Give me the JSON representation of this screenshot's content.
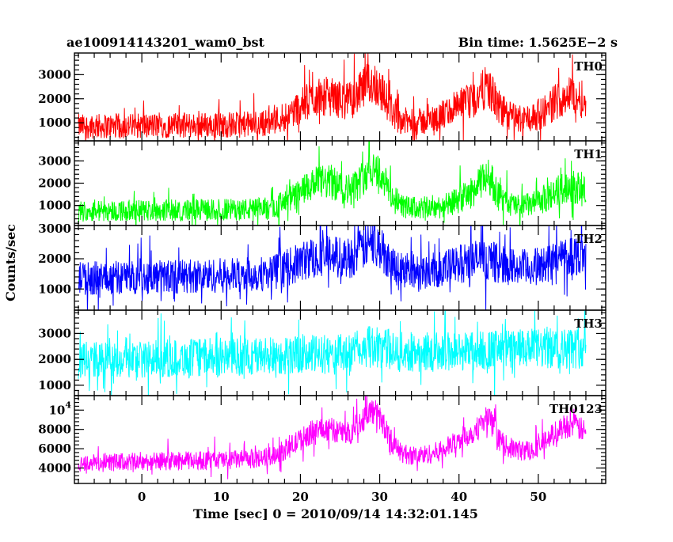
{
  "header": {
    "title": "ae100914143201_wam0_bst",
    "bin_time": "Bin time: 1.5625E−2 s"
  },
  "chart_data": {
    "type": "line",
    "xlabel": "Time [sec] 0 = 2010/09/14 14:32:01.145",
    "ylabel": "Counts/sec",
    "xlim": [
      -8.5,
      58.5
    ],
    "x_ticks": [
      0,
      10,
      20,
      30,
      40,
      50
    ],
    "x_range": [
      -8.0,
      56.0
    ],
    "panels": [
      {
        "name": "TH0",
        "color": "#ff0000",
        "ylim": [
          250,
          3900
        ],
        "y_ticks": [
          1000,
          2000,
          3000
        ],
        "baseline": 850,
        "noise": 520,
        "peaks": [
          {
            "t": 23.0,
            "amp": 1150,
            "w": 3.2
          },
          {
            "t": 29.2,
            "amp": 1500,
            "w": 1.6
          },
          {
            "t": 42.0,
            "amp": 850,
            "w": 2.8
          },
          {
            "t": 43.6,
            "amp": 700,
            "w": 0.8
          },
          {
            "t": 54.0,
            "amp": 1100,
            "w": 2.4
          }
        ]
      },
      {
        "name": "TH1",
        "color": "#00ff00",
        "ylim": [
          100,
          3900
        ],
        "y_ticks": [
          1000,
          2000,
          3000
        ],
        "baseline": 750,
        "noise": 480,
        "peaks": [
          {
            "t": 23.0,
            "amp": 1200,
            "w": 3.0
          },
          {
            "t": 29.3,
            "amp": 1700,
            "w": 1.5
          },
          {
            "t": 42.5,
            "amp": 700,
            "w": 2.2
          },
          {
            "t": 43.6,
            "amp": 800,
            "w": 0.8
          },
          {
            "t": 54.0,
            "amp": 900,
            "w": 2.4
          }
        ]
      },
      {
        "name": "TH2",
        "color": "#0000ff",
        "ylim": [
          300,
          3100
        ],
        "y_ticks": [
          1000,
          2000,
          3000
        ],
        "baseline": 1350,
        "noise": 560,
        "peaks": [
          {
            "t": 23.0,
            "amp": 600,
            "w": 3.2
          },
          {
            "t": 29.2,
            "amp": 850,
            "w": 1.6
          },
          {
            "t": 42.5,
            "amp": 350,
            "w": 2.5
          },
          {
            "t": 54.5,
            "amp": 450,
            "w": 2.5
          }
        ]
      },
      {
        "name": "TH3",
        "color": "#00ffff",
        "ylim": [
          600,
          3900
        ],
        "y_ticks": [
          1000,
          2000,
          3000
        ],
        "baseline": 1950,
        "noise": 720,
        "peaks": [
          {
            "t": 29.3,
            "amp": 250,
            "w": 1.6
          }
        ]
      },
      {
        "name": "TH0123",
        "color": "#ff00ff",
        "ylim": [
          2400,
          11500
        ],
        "y_ticks": [
          4000,
          6000,
          8000,
          10000
        ],
        "y_tick_labels": [
          "4000",
          "6000",
          "8000",
          "10^4"
        ],
        "baseline": 4500,
        "noise": 950,
        "peaks": [
          {
            "t": 23.0,
            "amp": 3000,
            "w": 3.2
          },
          {
            "t": 29.2,
            "amp": 4200,
            "w": 1.6
          },
          {
            "t": 42.2,
            "amp": 2200,
            "w": 2.6
          },
          {
            "t": 43.6,
            "amp": 1800,
            "w": 0.8
          },
          {
            "t": 54.0,
            "amp": 2800,
            "w": 2.4
          }
        ]
      }
    ]
  }
}
